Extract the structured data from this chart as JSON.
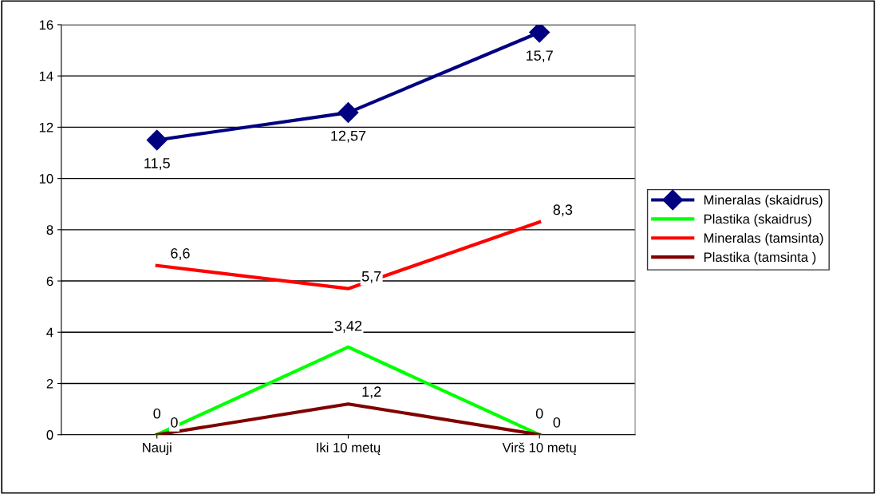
{
  "chart_data": {
    "type": "line",
    "categories": [
      "Nauji",
      "Iki 10 metų",
      "Virš 10 metų"
    ],
    "series": [
      {
        "name": "Mineralas (skaidrus)",
        "color": "#000080",
        "marker": "diamond",
        "values": [
          11.5,
          12.57,
          15.7
        ],
        "value_labels": [
          "11,5",
          "12,57",
          "15,7"
        ]
      },
      {
        "name": "Plastika (skaidrus)",
        "color": "#00ff00",
        "values": [
          0,
          3.42,
          0
        ],
        "value_labels": [
          "0",
          "3,42",
          "0"
        ]
      },
      {
        "name": "Mineralas (tamsinta)",
        "color": "#ff0000",
        "values": [
          6.6,
          5.7,
          8.3
        ],
        "value_labels": [
          "6,6",
          "5,7",
          "8,3"
        ]
      },
      {
        "name": "Plastika (tamsinta )",
        "color": "#800000",
        "values": [
          0,
          1.2,
          0
        ],
        "value_labels": [
          "0",
          "1,2",
          "0"
        ]
      }
    ],
    "ylim": [
      0,
      16
    ],
    "yticks": [
      0,
      2,
      4,
      6,
      8,
      10,
      12,
      14,
      16
    ],
    "grid": "y",
    "legend": "right"
  }
}
